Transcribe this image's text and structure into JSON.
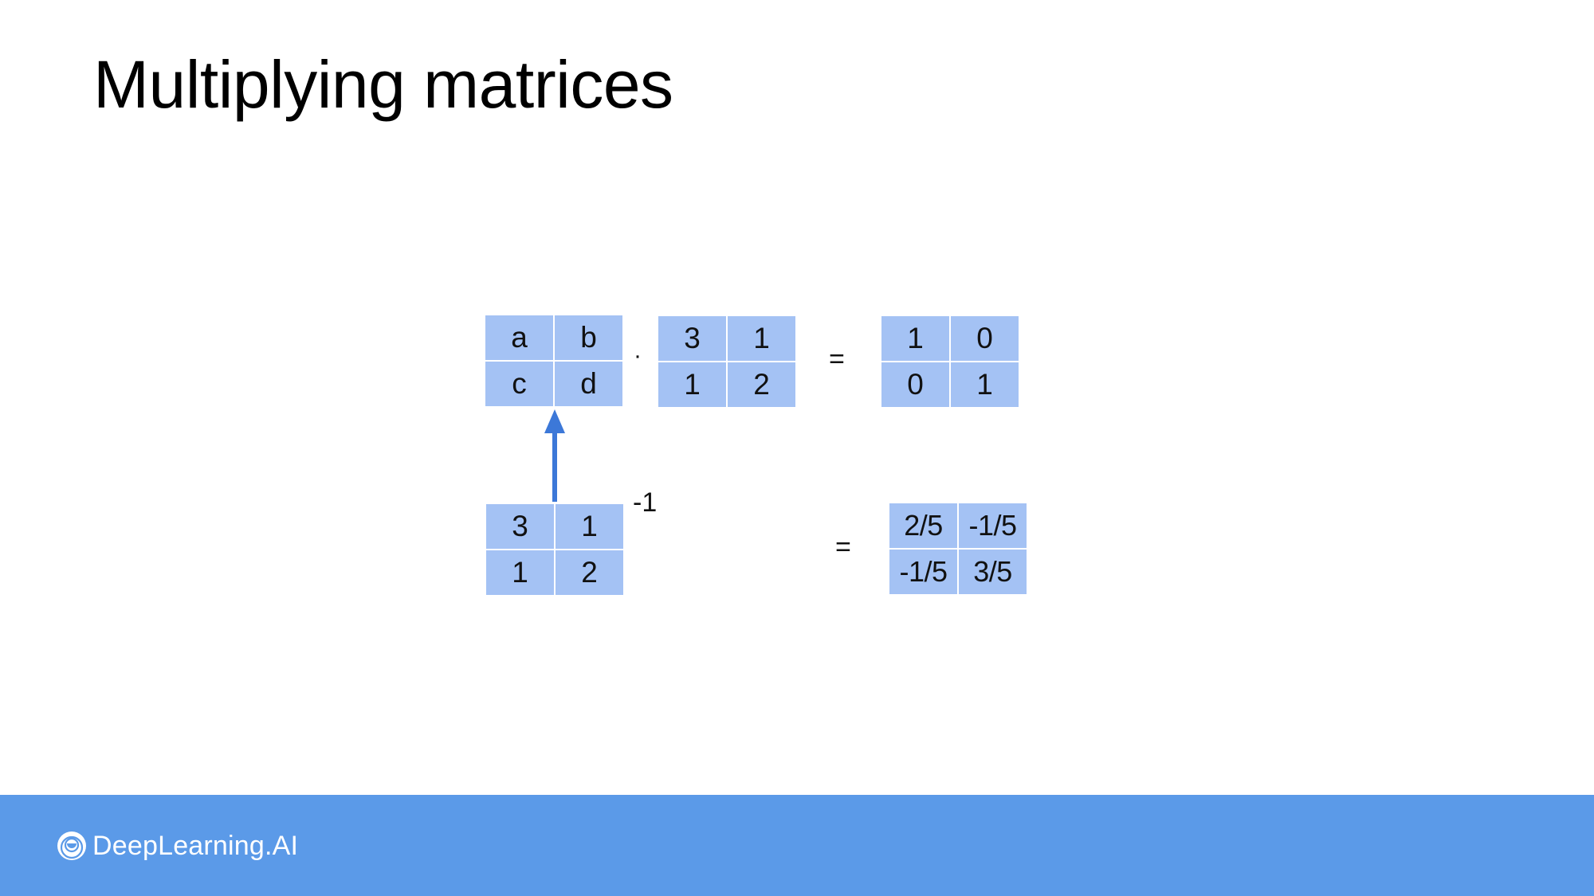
{
  "title": "Multiplying matrices",
  "matrix_unknown": {
    "r1": [
      "a",
      "b"
    ],
    "r2": [
      "c",
      "d"
    ]
  },
  "dot_operator": "·",
  "matrix_a": {
    "r1": [
      "3",
      "1"
    ],
    "r2": [
      "1",
      "2"
    ]
  },
  "equals_symbol": "=",
  "matrix_identity": {
    "r1": [
      "1",
      "0"
    ],
    "r2": [
      "0",
      "1"
    ]
  },
  "matrix_inverse_source": {
    "r1": [
      "3",
      "1"
    ],
    "r2": [
      "1",
      "2"
    ]
  },
  "inverse_exponent": "-1",
  "matrix_inverse_result": {
    "r1": [
      "2/5",
      "-1/5"
    ],
    "r2": [
      "-1/5",
      "3/5"
    ]
  },
  "brand": {
    "name": "DeepLearning.AI",
    "logo_icon": "deeplearning-ai-logo-icon"
  },
  "colors": {
    "cell": "#a4c2f4",
    "footer": "#5b9ae8",
    "arrow": "#3c78d8"
  }
}
